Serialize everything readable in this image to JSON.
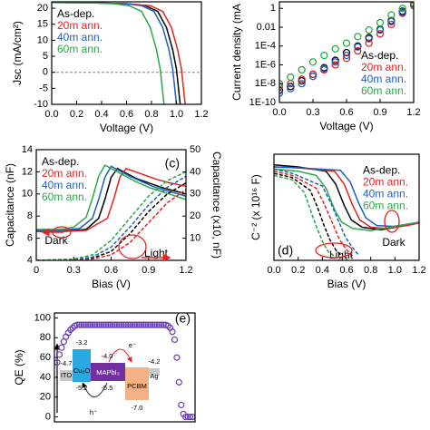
{
  "chart_data": [
    {
      "type": "line",
      "xlabel": "Voltage (V)",
      "ylabel": "Jsc (mA/cm²)",
      "xlim": [
        0,
        1.2
      ],
      "xticks": [
        {
          "value": 0,
          "label": "0.0"
        },
        0.2,
        0.4,
        0.6,
        0.8,
        {
          "value": 1,
          "label": "1.0"
        },
        1.2
      ],
      "ylim": [
        -10,
        22
      ],
      "yticks": [
        -10,
        -5,
        0,
        5,
        10,
        15,
        20
      ],
      "zero_lines": true,
      "legend": "upper left",
      "series": [
        {
          "name": "As-dep.",
          "color": "#000000",
          "x": [
            0,
            0.3,
            0.6,
            0.75,
            0.85,
            0.92,
            0.97,
            1.0,
            1.03
          ],
          "values": [
            21.8,
            21.7,
            21.4,
            20.8,
            19,
            14,
            7,
            1,
            -10
          ]
        },
        {
          "name": "20m ann.",
          "color": "#e8211f",
          "x": [
            0,
            0.3,
            0.6,
            0.79,
            0.89,
            0.96,
            1.01,
            1.04,
            1.07
          ],
          "values": [
            21.8,
            21.7,
            21.4,
            20.8,
            19,
            14,
            7,
            1,
            -10
          ]
        },
        {
          "name": "40m ann.",
          "color": "#1f5fbf",
          "x": [
            0,
            0.3,
            0.6,
            0.72,
            0.82,
            0.89,
            0.94,
            0.97,
            1.0
          ],
          "values": [
            21.8,
            21.7,
            21.4,
            20.8,
            19,
            14,
            7,
            1,
            -10
          ]
        },
        {
          "name": "60m ann.",
          "color": "#2aa84a",
          "x": [
            0,
            0.3,
            0.5,
            0.62,
            0.72,
            0.79,
            0.84,
            0.87,
            0.9
          ],
          "values": [
            21.8,
            21.7,
            21.4,
            20.8,
            19,
            14,
            7,
            1,
            -10
          ]
        }
      ]
    },
    {
      "type": "scatter",
      "xlabel": "Voltage (V)",
      "ylabel": "Current density (mA",
      "log_y": true,
      "xlim": [
        0,
        1.2
      ],
      "xticks": [
        {
          "value": 0,
          "label": "0.0"
        },
        0.3,
        0.6,
        0.9,
        1.2
      ],
      "ylim": [
        1e-10,
        5
      ],
      "yticks": [
        {
          "value": 1e-10,
          "label": "1E-10"
        },
        {
          "value": 1e-08,
          "label": "1E-8"
        },
        {
          "value": 1e-06,
          "label": "1E-6"
        },
        {
          "value": 0.0001,
          "label": "1E-4"
        },
        0.01,
        1
      ],
      "legend": "lower right",
      "x": [
        0,
        0.1,
        0.2,
        0.3,
        0.4,
        0.5,
        0.6,
        0.7,
        0.8,
        0.9,
        1.0,
        1.1,
        1.2
      ],
      "series": [
        {
          "name": "As-dep.",
          "color": "#000000",
          "values": [
            2e-09,
            5e-09,
            2e-08,
            1e-07,
            5e-07,
            3e-06,
            2e-05,
            0.0001,
            0.0008,
            0.006,
            0.05,
            0.5,
            3
          ]
        },
        {
          "name": "20m ann.",
          "color": "#e8211f",
          "values": [
            5e-09,
            1e-08,
            3e-08,
            1e-07,
            3e-07,
            1e-06,
            5e-06,
            3e-05,
            0.0002,
            0.002,
            0.02,
            0.3,
            2
          ]
        },
        {
          "name": "40m ann.",
          "color": "#1f5fbf",
          "values": [
            1e-09,
            3e-09,
            1e-08,
            6e-08,
            4e-07,
            2e-06,
            1e-05,
            8e-05,
            0.0006,
            0.005,
            0.04,
            0.4,
            3
          ]
        },
        {
          "name": "60m ann.",
          "color": "#2aa84a",
          "values": [
            1e-08,
            5e-08,
            3e-07,
            2e-06,
            1e-05,
            5e-05,
            0.0002,
            0.001,
            0.005,
            0.03,
            0.2,
            1,
            4
          ]
        }
      ]
    },
    {
      "type": "line",
      "xlabel": "Bias (V)",
      "ylabel": "Capacitance (nF)",
      "y2label": "Capacitance (x10, nF)",
      "label": "(c)",
      "xlim": [
        0,
        1.2
      ],
      "xticks": [
        0,
        0.3,
        0.6,
        0.9,
        1.2
      ],
      "ylim": [
        4,
        14
      ],
      "yticks": [
        4,
        6,
        8,
        10,
        12,
        14
      ],
      "y2lim": [
        0,
        50
      ],
      "y2ticks": [
        10,
        20,
        30,
        40,
        50
      ],
      "legend": "upper left",
      "annotations": [
        "Dark",
        "Light"
      ],
      "series": [
        {
          "name": "As-dep.",
          "color": "#000000",
          "x": [
            0,
            0.2,
            0.4,
            0.5,
            0.55,
            0.6,
            0.65,
            0.7,
            0.8,
            0.9,
            1.0,
            1.2
          ],
          "values": [
            6.6,
            6.6,
            6.8,
            7.8,
            9.5,
            11.5,
            12.3,
            12.0,
            11.4,
            11.0,
            10.6,
            10.0
          ]
        },
        {
          "name": "20m ann.",
          "color": "#e8211f",
          "x": [
            0,
            0.2,
            0.4,
            0.57,
            0.62,
            0.67,
            0.72,
            0.77,
            0.87,
            0.97,
            1.07,
            1.2
          ],
          "values": [
            6.6,
            6.6,
            6.7,
            7.8,
            9.5,
            11.5,
            12.3,
            12.1,
            11.7,
            11.3,
            11.0,
            10.7
          ]
        },
        {
          "name": "40m ann.",
          "color": "#1f5fbf",
          "x": [
            0,
            0.2,
            0.35,
            0.45,
            0.5,
            0.55,
            0.6,
            0.65,
            0.75,
            0.85,
            0.95,
            1.2
          ],
          "values": [
            6.7,
            6.7,
            6.9,
            7.8,
            9.5,
            11.5,
            12.5,
            12.2,
            11.6,
            11.1,
            10.6,
            9.8
          ]
        },
        {
          "name": "60m ann.",
          "color": "#2aa84a",
          "x": [
            0,
            0.2,
            0.3,
            0.4,
            0.45,
            0.5,
            0.55,
            0.6,
            0.7,
            0.8,
            0.9,
            1.2
          ],
          "values": [
            6.8,
            6.8,
            7.0,
            7.9,
            9.6,
            11.6,
            12.6,
            12.3,
            11.7,
            11.1,
            10.6,
            9.5
          ]
        },
        {
          "color": "#000000",
          "dash": true,
          "axis": "y2",
          "x": [
            0,
            0.3,
            0.45,
            0.6,
            0.75,
            0.9,
            1.05,
            1.2
          ],
          "values": [
            0,
            0.3,
            1,
            4,
            12,
            22,
            30,
            35
          ]
        },
        {
          "color": "#e8211f",
          "dash": true,
          "axis": "y2",
          "x": [
            0,
            0.3,
            0.45,
            0.6,
            0.75,
            0.9,
            1.05,
            1.2
          ],
          "values": [
            0,
            0.2,
            0.6,
            2.5,
            8,
            17,
            26,
            32
          ]
        },
        {
          "color": "#1f5fbf",
          "dash": true,
          "axis": "y2",
          "x": [
            0,
            0.3,
            0.45,
            0.6,
            0.75,
            0.9,
            1.05,
            1.2
          ],
          "values": [
            0,
            0.4,
            1.5,
            6,
            15,
            25,
            33,
            38
          ]
        },
        {
          "color": "#2aa84a",
          "dash": true,
          "axis": "y2",
          "x": [
            0,
            0.3,
            0.45,
            0.6,
            0.75,
            0.9,
            1.05,
            1.2
          ],
          "values": [
            0,
            0.6,
            2.5,
            9,
            19,
            29,
            36,
            40
          ]
        }
      ]
    },
    {
      "type": "line",
      "xlabel": "Bias (V)",
      "ylabel": "C⁻² (x 10¹⁶ F)",
      "label": "(d)",
      "xlim": [
        0,
        1.2
      ],
      "xticks": [
        {
          "value": 0,
          "label": "0.0"
        },
        0.2,
        0.4,
        0.6,
        0.8,
        {
          "value": 1,
          "label": "1.0"
        },
        1.2
      ],
      "ylim": [
        0,
        2.5
      ],
      "legend": "right",
      "annotations": [
        "Light",
        "Dark"
      ],
      "series": [
        {
          "name": "As-dep.",
          "color": "#000000",
          "x": [
            0,
            0.2,
            0.43,
            0.51,
            0.58,
            0.64,
            0.73,
            0.88,
            1.05,
            1.2
          ],
          "values": [
            2.25,
            2.2,
            2.1,
            1.8,
            1.3,
            0.95,
            0.78,
            0.72,
            0.8,
            0.9
          ]
        },
        {
          "name": "20m ann.",
          "color": "#e8211f",
          "x": [
            0,
            0.2,
            0.5,
            0.58,
            0.65,
            0.71,
            0.8,
            0.93,
            1.1,
            1.2
          ],
          "values": [
            2.2,
            2.18,
            2.1,
            1.8,
            1.3,
            0.95,
            0.78,
            0.75,
            0.82,
            0.88
          ]
        },
        {
          "name": "40m ann.",
          "color": "#1f5fbf",
          "x": [
            0,
            0.2,
            0.55,
            0.63,
            0.7,
            0.76,
            0.85,
            0.98,
            1.1,
            1.2
          ],
          "values": [
            2.2,
            2.18,
            2.12,
            1.85,
            1.35,
            1.0,
            0.82,
            0.8,
            0.85,
            0.9
          ]
        },
        {
          "name": "60m ann.",
          "color": "#2aa84a",
          "x": [
            0,
            0.2,
            0.35,
            0.43,
            0.5,
            0.56,
            0.65,
            0.8,
            1.0,
            1.2
          ],
          "values": [
            2.15,
            2.1,
            2.0,
            1.7,
            1.2,
            0.9,
            0.75,
            0.7,
            0.8,
            0.9
          ]
        },
        {
          "color": "#000000",
          "dash": true,
          "x": [
            0,
            0.15,
            0.3,
            0.36,
            0.41,
            0.46,
            0.51,
            0.56
          ],
          "values": [
            2.05,
            1.95,
            1.65,
            1.25,
            0.85,
            0.5,
            0.25,
            0.1
          ]
        },
        {
          "color": "#e8211f",
          "dash": true,
          "x": [
            0,
            0.15,
            0.35,
            0.42,
            0.48,
            0.54,
            0.6,
            0.65
          ],
          "values": [
            2.1,
            2.0,
            1.7,
            1.3,
            0.9,
            0.5,
            0.25,
            0.1
          ]
        },
        {
          "color": "#1f5fbf",
          "dash": true,
          "x": [
            0,
            0.15,
            0.4,
            0.47,
            0.53,
            0.59,
            0.65,
            0.7
          ],
          "values": [
            2.15,
            2.05,
            1.75,
            1.35,
            0.95,
            0.55,
            0.3,
            0.12
          ]
        },
        {
          "color": "#2aa84a",
          "dash": true,
          "x": [
            0,
            0.15,
            0.25,
            0.3,
            0.35,
            0.4,
            0.45,
            0.5
          ],
          "values": [
            2.0,
            1.9,
            1.6,
            1.2,
            0.8,
            0.45,
            0.2,
            0.1
          ]
        }
      ]
    },
    {
      "type": "scatter",
      "ylabel": "QE (%)",
      "label": "(e)",
      "color": "#6a3fb5",
      "ylim": [
        -5,
        105
      ],
      "yticks": [
        0,
        20,
        40,
        60,
        80,
        100
      ],
      "values": [
        55,
        63,
        70,
        76,
        81,
        85,
        88,
        90,
        92,
        93,
        93,
        93,
        93,
        93,
        93,
        93,
        93,
        93,
        93,
        93,
        93,
        93,
        93,
        93,
        93,
        93,
        93,
        93,
        93,
        93,
        93,
        93,
        93,
        93,
        93,
        93,
        93,
        93,
        93,
        93,
        93,
        93,
        93,
        93,
        93,
        93,
        93,
        93,
        93,
        93,
        92,
        90,
        86,
        78,
        60,
        35,
        12,
        3,
        0,
        0,
        0,
        0
      ],
      "annotations": [
        "-3.2",
        "-4.7",
        "ITO",
        "Cu₂O",
        "-4.0",
        "e⁻",
        "-4.2",
        "Ag",
        "MAPbI₃",
        "-5.2",
        "-5.5",
        "PCBM",
        "-7.0",
        "h⁺"
      ]
    }
  ]
}
